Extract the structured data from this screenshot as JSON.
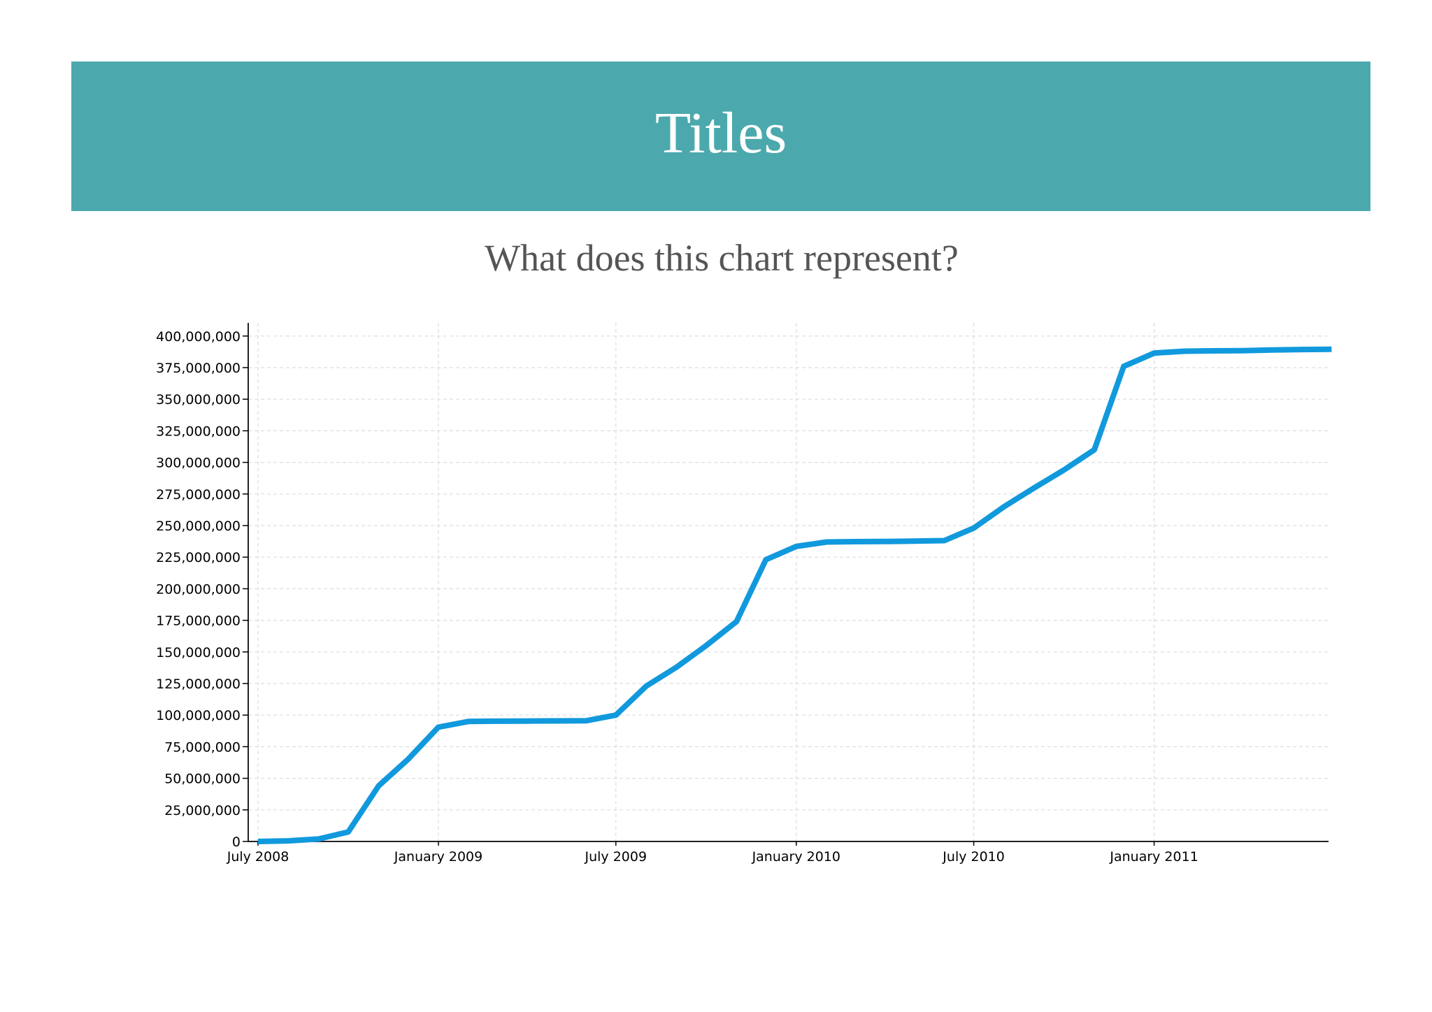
{
  "header": {
    "title": "Titles"
  },
  "question": "What does this chart represent?",
  "colors": {
    "banner": "#4ba9ad",
    "line": "#1199dd",
    "subtitle_text": "#555555"
  },
  "chart_data": {
    "type": "line",
    "title": "",
    "xlabel": "",
    "ylabel": "",
    "x_tick_labels": [
      "July 2008",
      "January 2009",
      "July 2009",
      "January 2010",
      "July 2010",
      "January 2011"
    ],
    "y_tick_labels": [
      "0",
      "25,000,000",
      "50,000,000",
      "75,000,000",
      "100,000,000",
      "125,000,000",
      "150,000,000",
      "175,000,000",
      "200,000,000",
      "225,000,000",
      "250,000,000",
      "275,000,000",
      "300,000,000",
      "325,000,000",
      "350,000,000",
      "375,000,000",
      "400,000,000"
    ],
    "ylim": [
      0,
      410000000
    ],
    "xlim": [
      "2008-07-01",
      "2011-07-28"
    ],
    "grid": true,
    "series": [
      {
        "x": [
          "2008-07-01",
          "2008-08-01",
          "2008-09-01",
          "2008-10-01",
          "2008-11-01",
          "2008-12-01",
          "2009-01-01",
          "2009-02-01",
          "2009-03-01",
          "2009-04-01",
          "2009-05-01",
          "2009-06-01",
          "2009-07-01",
          "2009-08-01",
          "2009-09-01",
          "2009-10-01",
          "2009-11-01",
          "2009-12-01",
          "2010-01-01",
          "2010-02-01",
          "2010-03-01",
          "2010-04-01",
          "2010-05-01",
          "2010-06-01",
          "2010-07-01",
          "2010-08-01",
          "2010-09-01",
          "2010-10-01",
          "2010-11-01",
          "2010-12-01",
          "2011-01-01",
          "2011-02-01",
          "2011-03-01",
          "2011-04-01",
          "2011-05-01",
          "2011-06-01",
          "2011-07-01"
        ],
        "values": [
          0,
          500000,
          2000000,
          7500000,
          44000000,
          65000000,
          90500000,
          95000000,
          95200000,
          95300000,
          95400000,
          95600000,
          100000000,
          123000000,
          138000000,
          155000000,
          174000000,
          223000000,
          233500000,
          237000000,
          237300000,
          237400000,
          237700000,
          238100000,
          248000000,
          265000000,
          280000000,
          294000000,
          310000000,
          376000000,
          386500000,
          388000000,
          388300000,
          388400000,
          389000000,
          389300000,
          389500000
        ]
      }
    ]
  }
}
